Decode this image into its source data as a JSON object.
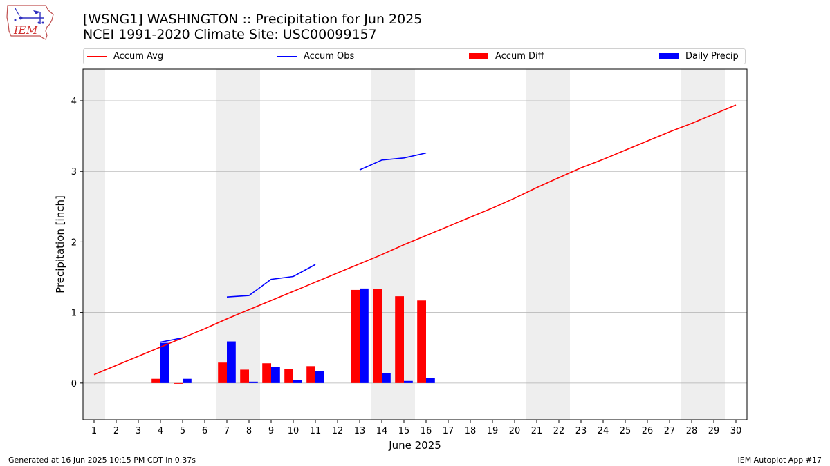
{
  "header": {
    "title_line1": "[WSNG1] WASHINGTON :: Precipitation for Jun 2025",
    "title_line2": "NCEI 1991-2020 Climate Site: USC00099157"
  },
  "logo": {
    "text": "IEM",
    "icon": "iem-iowa-logo-icon"
  },
  "footer": {
    "left": "Generated at 16 Jun 2025 10:15 PM CDT in 0.37s",
    "right": "IEM Autoplot App #17"
  },
  "colors": {
    "avg": "#ff0000",
    "obs": "#0000ff",
    "diff": "#ff0000",
    "daily": "#0000ff",
    "weekend": "#eeeeee",
    "grid": "#b0b0b0"
  },
  "chart_data": {
    "type": "bar",
    "xlabel": "June 2025",
    "ylabel": "Precipitation [inch]",
    "xlim": [
      0.5,
      30.5
    ],
    "ylim": [
      -0.52,
      4.45
    ],
    "x_ticks": [
      1,
      2,
      3,
      4,
      5,
      6,
      7,
      8,
      9,
      10,
      11,
      12,
      13,
      14,
      15,
      16,
      17,
      18,
      19,
      20,
      21,
      22,
      23,
      24,
      25,
      26,
      27,
      28,
      29,
      30
    ],
    "y_ticks": [
      0,
      1,
      2,
      3,
      4
    ],
    "grid": "horizontal",
    "legend_position": "top",
    "shaded_weekends": [
      [
        0.5,
        1.5
      ],
      [
        6.5,
        8.5
      ],
      [
        13.5,
        15.5
      ],
      [
        20.5,
        22.5
      ],
      [
        27.5,
        29.5
      ]
    ],
    "series": [
      {
        "name": "Accum Avg",
        "kind": "line",
        "x": [
          1,
          2,
          3,
          4,
          5,
          6,
          7,
          8,
          9,
          10,
          11,
          12,
          13,
          14,
          15,
          16,
          17,
          18,
          19,
          20,
          21,
          22,
          23,
          24,
          25,
          26,
          27,
          28,
          29,
          30
        ],
        "values": [
          0.12,
          0.25,
          0.38,
          0.51,
          0.64,
          0.77,
          0.91,
          1.04,
          1.17,
          1.3,
          1.43,
          1.56,
          1.69,
          1.82,
          1.96,
          2.09,
          2.22,
          2.35,
          2.48,
          2.62,
          2.77,
          2.91,
          3.05,
          3.17,
          3.3,
          3.43,
          3.56,
          3.68,
          3.81,
          3.94
        ]
      },
      {
        "name": "Accum Obs",
        "kind": "line",
        "segments": [
          {
            "x": [
              4,
              5
            ],
            "values": [
              0.58,
              0.64
            ]
          },
          {
            "x": [
              7,
              8,
              9,
              10,
              11
            ],
            "values": [
              1.22,
              1.24,
              1.47,
              1.51,
              1.68
            ]
          },
          {
            "x": [
              13,
              14,
              15,
              16
            ],
            "values": [
              3.02,
              3.16,
              3.19,
              3.26
            ]
          }
        ]
      },
      {
        "name": "Accum Diff",
        "kind": "bar",
        "offset": -0.2,
        "x": [
          4,
          5,
          7,
          8,
          9,
          10,
          11,
          13,
          14,
          15,
          16
        ],
        "values": [
          0.06,
          -0.01,
          0.29,
          0.19,
          0.28,
          0.2,
          0.24,
          1.32,
          1.33,
          1.23,
          1.17
        ]
      },
      {
        "name": "Daily Precip",
        "kind": "bar",
        "offset": 0.2,
        "x": [
          4,
          5,
          7,
          8,
          9,
          10,
          11,
          13,
          14,
          15,
          16
        ],
        "values": [
          0.57,
          0.06,
          0.59,
          0.02,
          0.23,
          0.04,
          0.17,
          1.34,
          0.14,
          0.03,
          0.07
        ]
      }
    ]
  }
}
